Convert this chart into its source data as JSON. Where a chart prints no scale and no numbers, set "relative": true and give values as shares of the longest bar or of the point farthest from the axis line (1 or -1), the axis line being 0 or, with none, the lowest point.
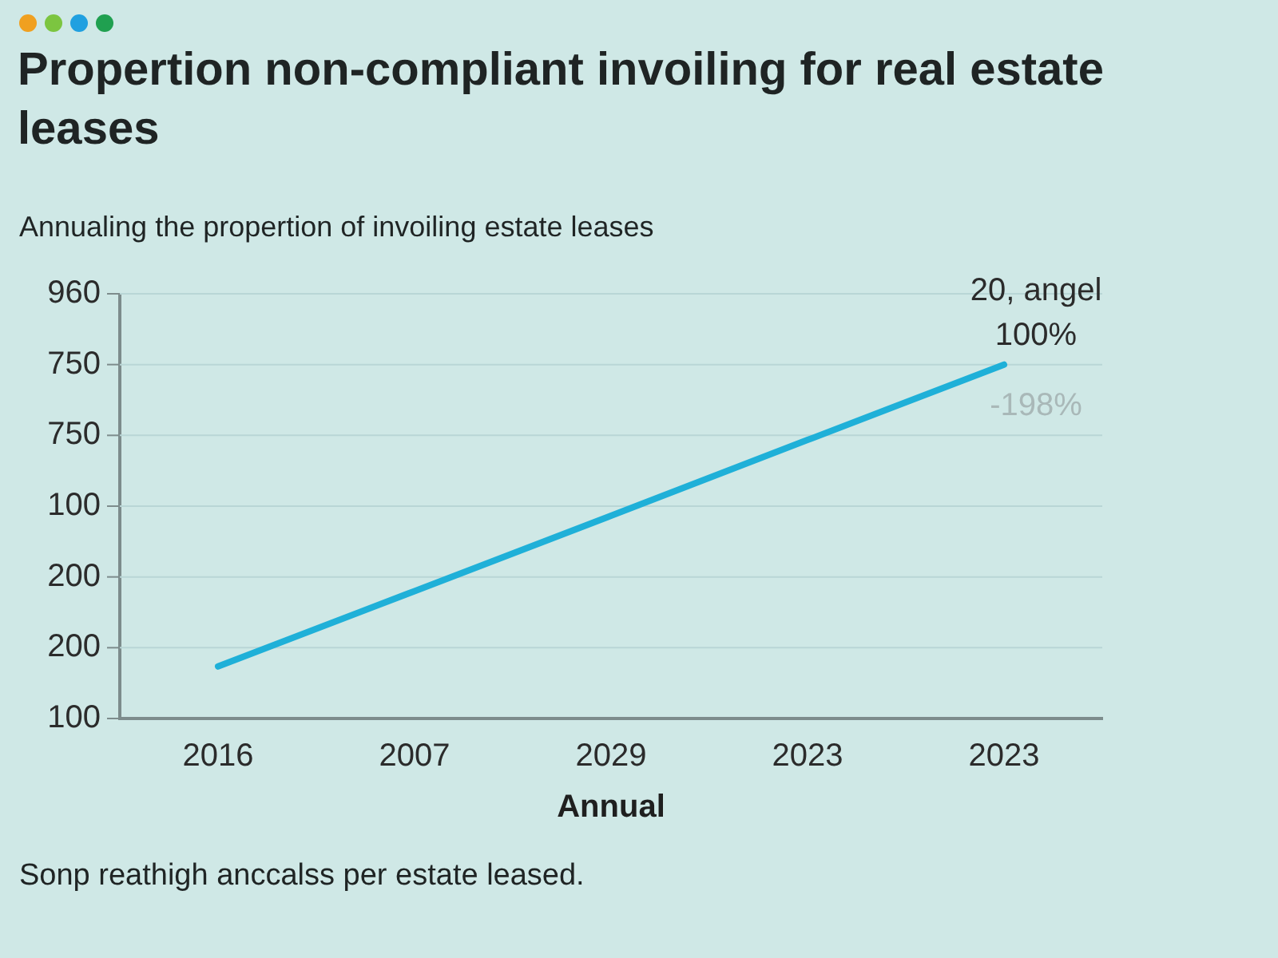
{
  "chart_data": {
    "type": "line",
    "title": "Propertion non-compliant invoiling for real estate leases",
    "subtitle": "Annualing the propertion of invoiling estate leases",
    "xlabel": "Annual",
    "categories": [
      "2016",
      "2007",
      "2029",
      "2023",
      "2023"
    ],
    "series": [
      {
        "color": "#1fb0d8",
        "values": [
          0.147,
          0.36,
          0.573,
          0.787,
          1
        ]
      }
    ],
    "relative": true,
    "grid": "y",
    "marker": "none",
    "line_style": "solid",
    "legend": false,
    "annotations": [
      "20, angel",
      "100%",
      "-198%",
      "Sonp reathigh anccalss per estate leased.",
      "960",
      "750",
      "750",
      "100",
      "200",
      "200",
      "100"
    ]
  }
}
